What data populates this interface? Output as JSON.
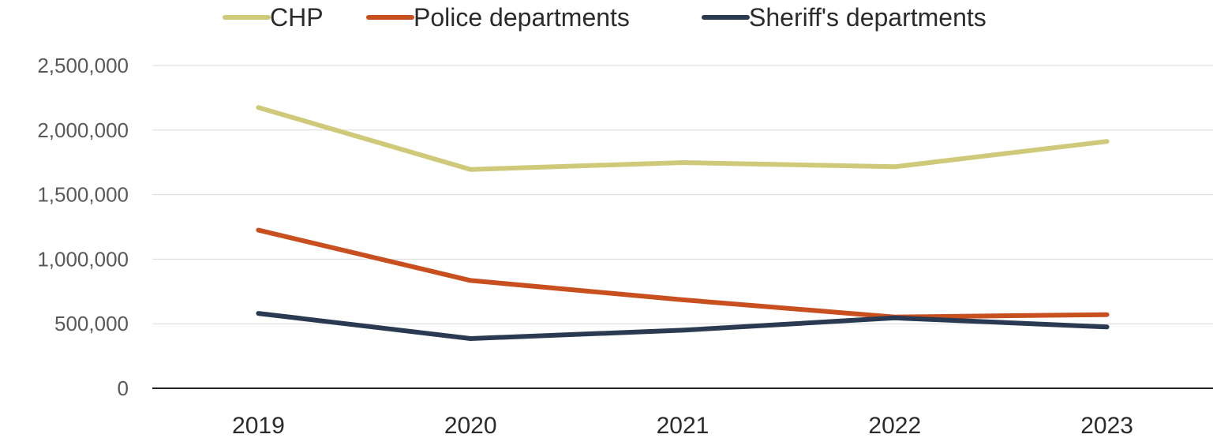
{
  "chart_data": {
    "type": "line",
    "title": "",
    "xlabel": "",
    "ylabel": "",
    "categories": [
      "2019",
      "2020",
      "2021",
      "2022",
      "2023"
    ],
    "ylim": [
      0,
      2500000
    ],
    "y_ticks": [
      0,
      500000,
      1000000,
      1500000,
      2000000,
      2500000
    ],
    "y_tick_labels": [
      "0",
      "500,000",
      "1,000,000",
      "1,500,000",
      "2,000,000",
      "2,500,000"
    ],
    "grid": true,
    "legend_position": "top",
    "series": [
      {
        "name": "CHP",
        "color": "#cfc97a",
        "values": [
          2175000,
          1695000,
          1748000,
          1716000,
          1912000
        ]
      },
      {
        "name": "Police departments",
        "color": "#c8501f",
        "values": [
          1225000,
          835000,
          685000,
          552000,
          570000
        ]
      },
      {
        "name": "Sheriff's departments",
        "color": "#2a3a52",
        "values": [
          580000,
          385000,
          450000,
          545000,
          475000
        ]
      }
    ]
  }
}
